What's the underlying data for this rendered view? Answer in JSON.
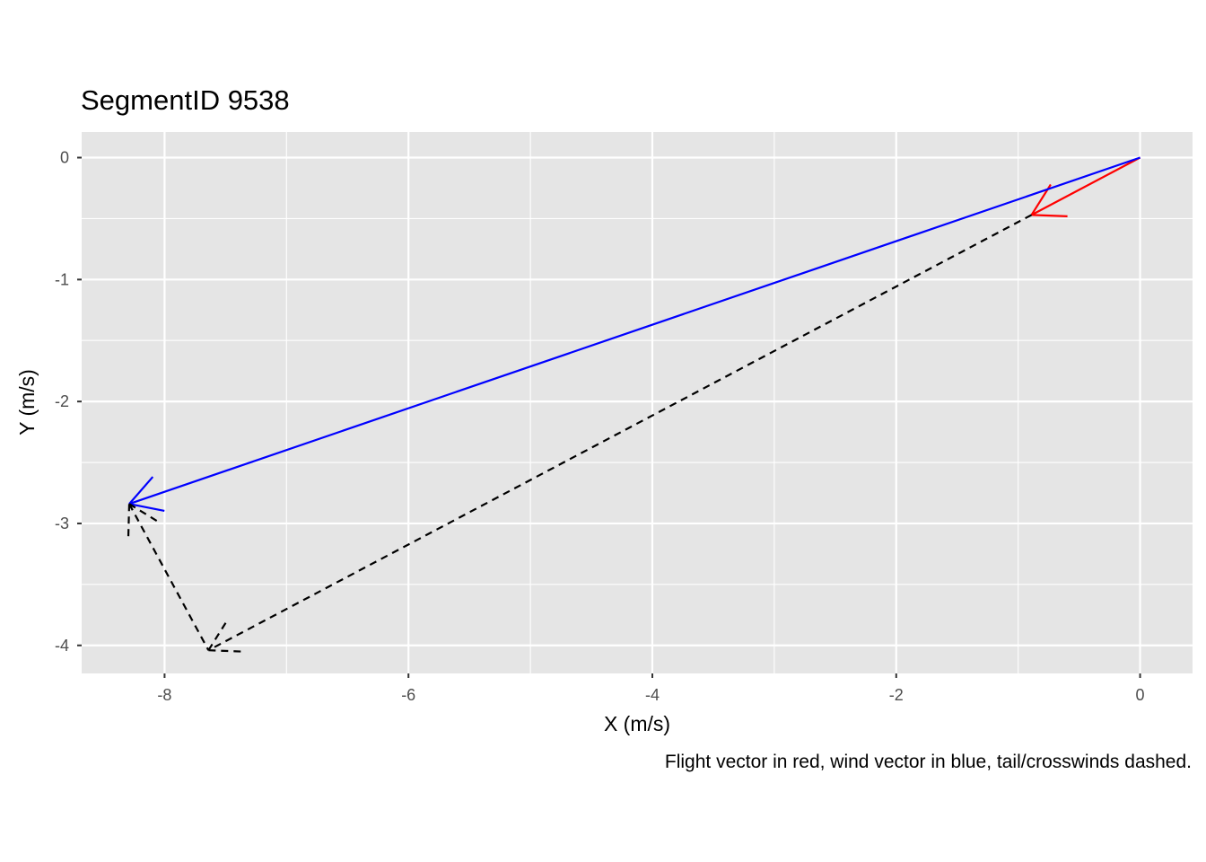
{
  "chart_data": {
    "type": "vector_plot",
    "title": "SegmentID 9538",
    "xlabel": "X (m/s)",
    "ylabel": "Y (m/s)",
    "caption": "Flight vector in red, wind vector in blue, tail/crosswinds dashed.",
    "xlim": [
      -8.68,
      0.43
    ],
    "ylim": [
      -4.23,
      0.21
    ],
    "x_ticks": [
      -8,
      -6,
      -4,
      -2,
      0
    ],
    "x_tick_labels": [
      "-8",
      "-6",
      "-4",
      "-2",
      "0"
    ],
    "y_ticks": [
      0,
      -1,
      -2,
      -3,
      -4
    ],
    "y_tick_labels": [
      "0",
      "-1",
      "-2",
      "-3",
      "-4"
    ],
    "grid": true,
    "series": [
      {
        "style": "solid",
        "color": "#ff0000",
        "x": [
          0,
          -0.89
        ],
        "y": [
          0,
          -0.47
        ],
        "arrow": "end"
      },
      {
        "style": "solid",
        "color": "#0000ff",
        "x": [
          0,
          -8.29
        ],
        "y": [
          0,
          -2.84
        ],
        "arrow": "end"
      },
      {
        "style": "dashed",
        "color": "#000000",
        "x": [
          -0.89,
          -7.64
        ],
        "y": [
          -0.47,
          -4.04
        ],
        "arrow": "end"
      },
      {
        "style": "dashed",
        "color": "#000000",
        "x": [
          -8.29,
          -7.64
        ],
        "y": [
          -2.84,
          -4.04
        ],
        "arrow": "start"
      }
    ]
  }
}
